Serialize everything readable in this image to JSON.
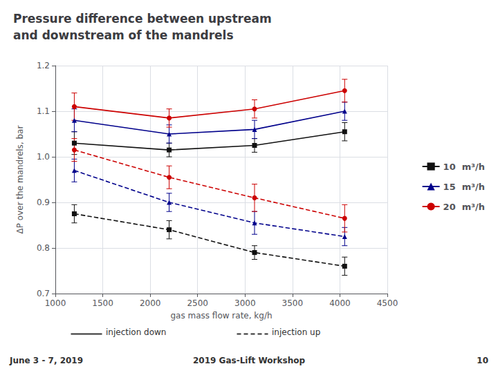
{
  "chart_data": {
    "type": "line",
    "title": "Pressure difference between upstream\nand downstream of the mandrels",
    "xlabel": "gas mass flow rate, kg/h",
    "ylabel": "ΔP over the mandrels, bar",
    "x": [
      1200,
      2200,
      3100,
      4050
    ],
    "xlim": [
      1000,
      4500
    ],
    "ylim": [
      0.7,
      1.2
    ],
    "xticks": [
      1000,
      1500,
      2000,
      2500,
      3000,
      3500,
      4000,
      4500
    ],
    "yticks": [
      0.7,
      0.8,
      0.9,
      {
        "value": 1.0,
        "label": "1.0"
      },
      1.1,
      1.2
    ],
    "grid": true,
    "legend": "right",
    "series": [
      {
        "name": "10  m³/h",
        "color": "#111111",
        "marker": "square",
        "line_style": "solid",
        "values": [
          1.03,
          1.015,
          1.025,
          1.055
        ],
        "errors": [
          0.025,
          0.015,
          0.015,
          0.02
        ]
      },
      {
        "name": "15  m³/h",
        "color": "#00008b",
        "marker": "triangle",
        "line_style": "solid",
        "values": [
          1.08,
          1.05,
          1.06,
          1.1
        ],
        "errors": [
          0.025,
          0.02,
          0.02,
          0.02
        ]
      },
      {
        "name": "20  m³/h",
        "color": "#cc0000",
        "marker": "circle",
        "line_style": "solid",
        "values": [
          1.11,
          1.085,
          1.105,
          1.145
        ],
        "errors": [
          0.03,
          0.02,
          0.02,
          0.025
        ]
      },
      {
        "name": "10  m³/h",
        "color": "#111111",
        "marker": "square",
        "line_style": "dashed",
        "values": [
          0.875,
          0.84,
          0.79,
          0.76
        ],
        "errors": [
          0.02,
          0.02,
          0.015,
          0.02
        ]
      },
      {
        "name": "15  m³/h",
        "color": "#00008b",
        "marker": "triangle",
        "line_style": "dashed",
        "values": [
          0.97,
          0.9,
          0.855,
          0.825
        ],
        "errors": [
          0.025,
          0.02,
          0.025,
          0.02
        ]
      },
      {
        "name": "20  m³/h",
        "color": "#cc0000",
        "marker": "circle",
        "line_style": "dashed",
        "values": [
          1.015,
          0.955,
          0.91,
          0.865
        ],
        "errors": [
          0.025,
          0.025,
          0.03,
          0.03
        ]
      }
    ],
    "annotations": [
      {
        "text": "injection down",
        "line_style": "solid"
      },
      {
        "text": "injection up",
        "line_style": "dashed"
      },
      {
        "text": "June 3 - 7, 2019"
      },
      {
        "text": "2019 Gas-Lift Workshop"
      },
      {
        "text": "10"
      }
    ]
  }
}
